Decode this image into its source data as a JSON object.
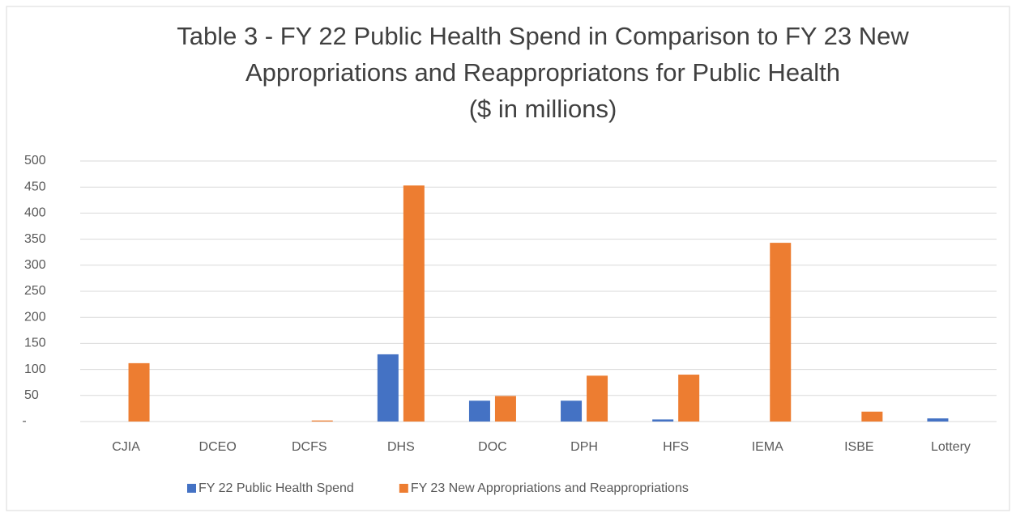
{
  "chart_data": {
    "type": "bar",
    "title": [
      "Table 3 - FY 22 Public Health Spend in Comparison to FY 23 New",
      "Appropriations and Reappropriatons for Public Health",
      "($ in millions)"
    ],
    "categories": [
      "CJIA",
      "DCEO",
      "DCFS",
      "DHS",
      "DOC",
      "DPH",
      "HFS",
      "IEMA",
      "ISBE",
      "Lottery"
    ],
    "series": [
      {
        "name": "FY 22 Public Health Spend",
        "color": "#4472c4",
        "values": [
          0,
          0,
          0,
          129,
          40,
          40,
          4,
          0,
          0,
          6
        ]
      },
      {
        "name": "FY 23 New Appropriations and Reappropriations",
        "color": "#ed7d31",
        "values": [
          112,
          0,
          2,
          453,
          49,
          88,
          90,
          343,
          19,
          0
        ]
      }
    ],
    "ylim": [
      0,
      500
    ],
    "yticks": [
      {
        "value": 0,
        "label": "-"
      },
      50,
      100,
      150,
      200,
      250,
      300,
      350,
      400,
      450,
      500
    ],
    "grid": true,
    "legend": "bottom"
  }
}
